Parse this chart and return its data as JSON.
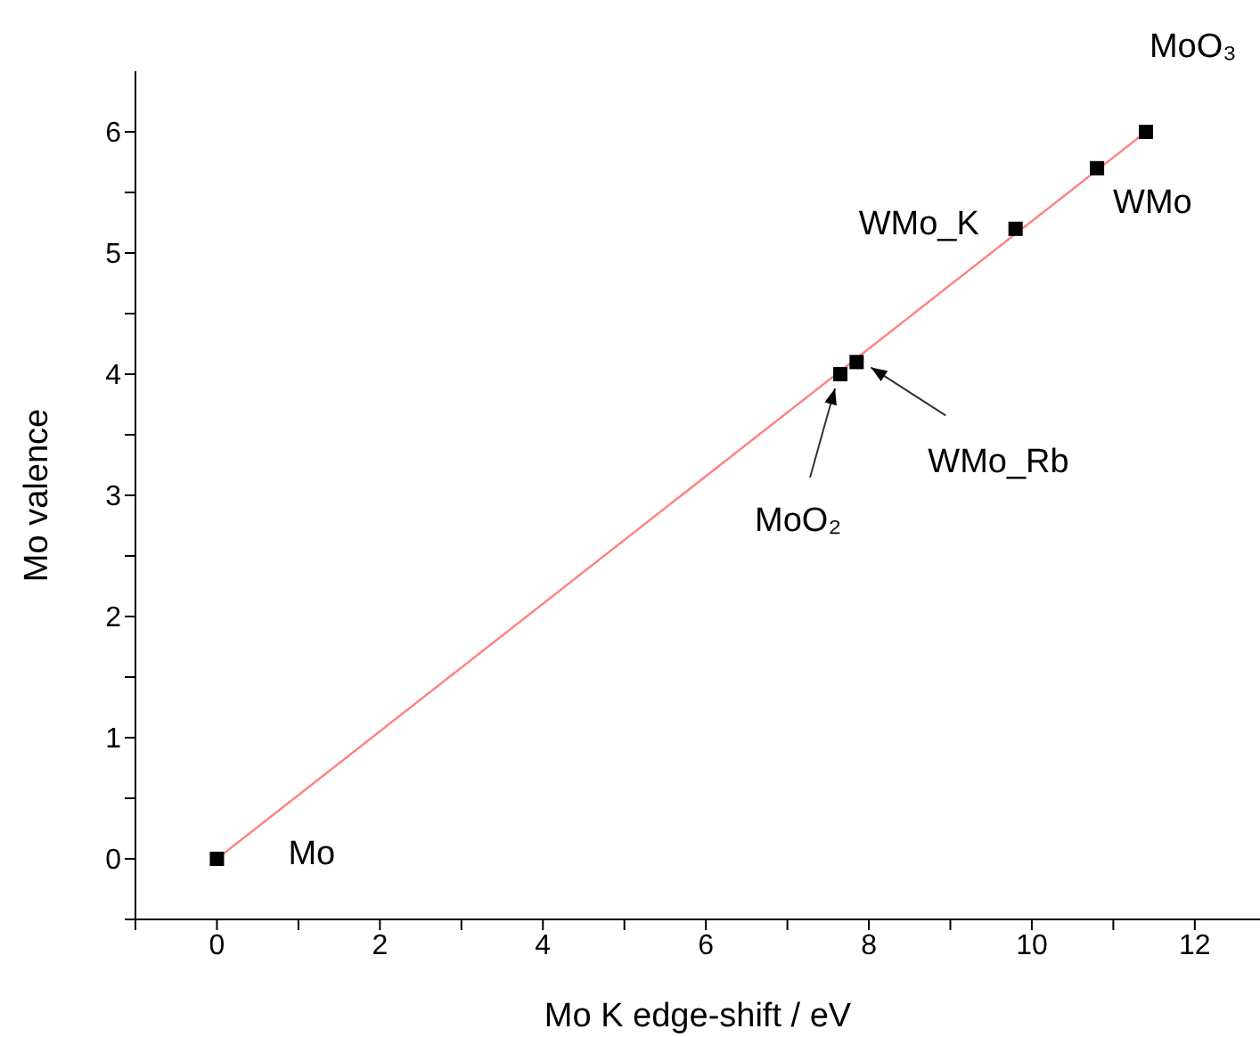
{
  "chart_data": {
    "type": "scatter",
    "xlabel": "Mo K edge-shift / eV",
    "ylabel": "Mo valence",
    "xlim": [
      -1,
      12.8
    ],
    "ylim": [
      -0.5,
      6.5
    ],
    "xticks": [
      {
        "value": -1,
        "label": null
      },
      0,
      {
        "value": 1,
        "label": null
      },
      2,
      {
        "value": 3,
        "label": null
      },
      4,
      {
        "value": 5,
        "label": null
      },
      6,
      {
        "value": 7,
        "label": null
      },
      8,
      {
        "value": 9,
        "label": null
      },
      10,
      {
        "value": 11,
        "label": null
      },
      12
    ],
    "yticks": [
      {
        "value": -0.5,
        "label": null
      },
      0,
      {
        "value": 0.5,
        "label": null
      },
      1,
      {
        "value": 1.5,
        "label": null
      },
      2,
      {
        "value": 2.5,
        "label": null
      },
      3,
      {
        "value": 3.5,
        "label": null
      },
      4,
      {
        "value": 4.5,
        "label": null
      },
      5,
      {
        "value": 5.5,
        "label": null
      },
      6
    ],
    "series": [
      {
        "marker": "square",
        "color": "#000000",
        "x": [
          0,
          7.65,
          7.85,
          9.8,
          10.8,
          11.4
        ],
        "values": [
          0,
          4.0,
          4.1,
          5.2,
          5.7,
          6.0
        ]
      },
      {
        "type": "line",
        "marker": "none",
        "color": "#ff8080",
        "x": [
          0,
          11.4
        ],
        "values": [
          0,
          6.0
        ]
      }
    ],
    "annotations": [
      {
        "text": "Mo",
        "x": 0,
        "y": 0
      },
      {
        "text": "MoO₂",
        "x": 7.65,
        "y": 4.0
      },
      {
        "text": "WMo_Rb",
        "x": 7.85,
        "y": 4.1
      },
      {
        "text": "WMo_K",
        "x": 9.8,
        "y": 5.2
      },
      {
        "text": "WMo",
        "x": 10.8,
        "y": 5.7
      },
      {
        "text": "MoO₃",
        "x": 11.4,
        "y": 6.0
      }
    ]
  }
}
